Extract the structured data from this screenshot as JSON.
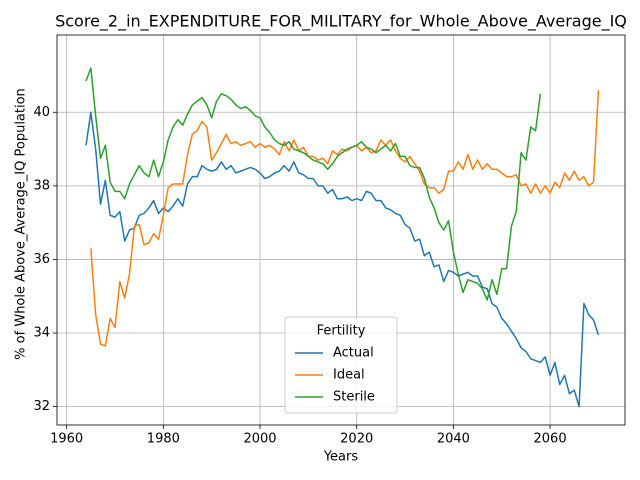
{
  "chart_data": {
    "type": "line",
    "title": "Score_2_in_EXPENDITURE_FOR_MILITARY_for_Whole_Above_Average_IQ",
    "xlabel": "Years",
    "ylabel": "% of Whole Above_Average_IQ Population",
    "x": [
      1964,
      1965,
      1966,
      1967,
      1968,
      1969,
      1970,
      1971,
      1972,
      1973,
      1974,
      1975,
      1976,
      1977,
      1978,
      1979,
      1980,
      1981,
      1982,
      1983,
      1984,
      1985,
      1986,
      1987,
      1988,
      1989,
      1990,
      1991,
      1992,
      1993,
      1994,
      1995,
      1996,
      1997,
      1998,
      1999,
      2000,
      2001,
      2002,
      2003,
      2004,
      2005,
      2006,
      2007,
      2008,
      2009,
      2010,
      2011,
      2012,
      2013,
      2014,
      2015,
      2016,
      2017,
      2018,
      2019,
      2020,
      2021,
      2022,
      2023,
      2024,
      2025,
      2026,
      2027,
      2028,
      2029,
      2030,
      2031,
      2032,
      2033,
      2034,
      2035,
      2036,
      2037,
      2038,
      2039,
      2040,
      2041,
      2042,
      2043,
      2044,
      2045,
      2046,
      2047,
      2048,
      2049,
      2050,
      2051,
      2052,
      2053,
      2054,
      2055,
      2056,
      2057,
      2058,
      2059,
      2060,
      2061,
      2062,
      2063,
      2064,
      2065,
      2066,
      2067,
      2068,
      2069,
      2070
    ],
    "series": [
      {
        "name": "Actual",
        "color": "#1f77b4",
        "values": [
          39.1,
          40.0,
          39.0,
          37.5,
          38.15,
          37.2,
          37.15,
          37.3,
          36.5,
          36.8,
          36.85,
          37.2,
          37.25,
          37.4,
          37.6,
          37.25,
          37.4,
          37.3,
          37.45,
          37.65,
          37.45,
          38.05,
          38.25,
          38.25,
          38.55,
          38.45,
          38.4,
          38.45,
          38.65,
          38.45,
          38.55,
          38.35,
          38.4,
          38.45,
          38.5,
          38.45,
          38.35,
          38.2,
          38.25,
          38.35,
          38.4,
          38.55,
          38.4,
          38.65,
          38.35,
          38.3,
          38.2,
          38.2,
          38.0,
          38.0,
          37.8,
          37.9,
          37.65,
          37.65,
          37.7,
          37.6,
          37.65,
          37.6,
          37.85,
          37.8,
          37.6,
          37.6,
          37.4,
          37.35,
          37.25,
          37.2,
          36.95,
          36.85,
          36.5,
          36.55,
          36.1,
          36.2,
          35.8,
          35.85,
          35.4,
          35.7,
          35.65,
          35.55,
          35.6,
          35.65,
          35.55,
          35.55,
          35.25,
          35.2,
          34.8,
          34.7,
          34.4,
          34.25,
          34.05,
          33.85,
          33.6,
          33.5,
          33.3,
          33.25,
          33.2,
          33.35,
          32.85,
          33.2,
          32.6,
          32.85,
          32.35,
          32.45,
          32.0,
          34.8,
          34.5,
          34.35,
          33.95
        ]
      },
      {
        "name": "Ideal",
        "color": "#ff7f0e",
        "values": [
          null,
          36.3,
          34.5,
          33.7,
          33.65,
          34.4,
          34.15,
          35.4,
          34.95,
          35.6,
          36.9,
          36.95,
          36.4,
          36.45,
          36.7,
          36.55,
          37.2,
          37.95,
          38.05,
          38.05,
          38.05,
          38.85,
          39.4,
          39.5,
          39.75,
          39.6,
          38.7,
          38.9,
          39.15,
          39.4,
          39.15,
          39.2,
          39.1,
          39.15,
          39.2,
          39.05,
          39.15,
          39.05,
          39.1,
          39.0,
          38.85,
          39.2,
          38.95,
          39.25,
          38.95,
          39.05,
          38.8,
          38.8,
          38.7,
          38.75,
          38.6,
          38.95,
          38.85,
          39.0,
          38.95,
          39.05,
          39.1,
          38.95,
          39.05,
          38.9,
          38.95,
          39.25,
          39.1,
          39.25,
          38.95,
          38.75,
          38.65,
          38.8,
          38.6,
          38.4,
          38.05,
          37.95,
          37.95,
          37.8,
          37.9,
          38.4,
          38.4,
          38.65,
          38.45,
          38.85,
          38.45,
          38.7,
          38.45,
          38.6,
          38.45,
          38.45,
          38.35,
          38.25,
          38.25,
          38.3,
          38.0,
          38.05,
          37.8,
          38.05,
          37.8,
          38.0,
          37.8,
          38.1,
          37.95,
          38.35,
          38.15,
          38.4,
          38.15,
          38.25,
          38.0,
          38.1,
          40.6
        ]
      },
      {
        "name": "Sterile",
        "color": "#2ca02c",
        "values": [
          40.85,
          41.2,
          39.9,
          38.75,
          39.1,
          38.1,
          37.85,
          37.85,
          37.65,
          38.05,
          38.3,
          38.55,
          38.35,
          38.25,
          38.7,
          38.25,
          38.65,
          39.25,
          39.6,
          39.8,
          39.65,
          39.95,
          40.2,
          40.3,
          40.4,
          40.2,
          39.85,
          40.3,
          40.5,
          40.45,
          40.35,
          40.2,
          40.1,
          40.15,
          40.05,
          39.9,
          39.85,
          39.6,
          39.45,
          39.25,
          39.15,
          39.1,
          39.2,
          39.0,
          38.95,
          38.9,
          38.8,
          38.7,
          38.65,
          38.6,
          38.45,
          38.6,
          38.8,
          38.9,
          39.0,
          39.05,
          39.1,
          39.2,
          39.05,
          39.0,
          38.9,
          39.0,
          39.1,
          38.95,
          39.15,
          38.8,
          38.8,
          38.55,
          38.5,
          38.5,
          38.2,
          37.7,
          37.4,
          37.0,
          36.8,
          37.05,
          36.2,
          35.6,
          35.1,
          35.45,
          35.4,
          35.35,
          35.2,
          34.9,
          35.45,
          35.05,
          35.75,
          35.75,
          36.9,
          37.3,
          38.9,
          38.7,
          39.6,
          39.5,
          40.5,
          null,
          null,
          null,
          null,
          null,
          null,
          null,
          null,
          null,
          null,
          null,
          null
        ]
      }
    ],
    "xlim": [
      1958,
      2075.5
    ],
    "ylim": [
      31.5,
      42.1
    ],
    "xticks": [
      1960,
      1980,
      2000,
      2020,
      2040,
      2060
    ],
    "yticks": [
      32,
      34,
      36,
      38,
      40
    ],
    "grid": true,
    "legend": {
      "title": "Fertility",
      "loc": "lower center"
    }
  }
}
